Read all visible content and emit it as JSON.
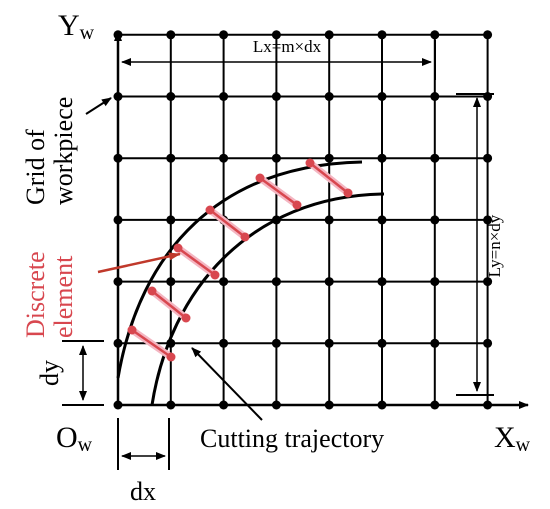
{
  "axes": {
    "y_label": "Y",
    "y_sub": "w",
    "x_label": "X",
    "x_sub": "w",
    "origin_label": "O",
    "origin_sub": "w"
  },
  "dimensions": {
    "lx": "Lx=m×dx",
    "ly": "Ly=n×dy",
    "dx": "dx",
    "dy": "dy"
  },
  "labels": {
    "grid_part1": "Grid of",
    "grid_part2": "workpiece",
    "element_part1": "Discrete",
    "element_part2": "element",
    "trajectory": "Cutting trajectory"
  },
  "grid": {
    "columns": 7,
    "rows": 6
  },
  "colors": {
    "grid": "#000000",
    "element": "#d8474f",
    "element_highlight": "#f4b6c2"
  }
}
